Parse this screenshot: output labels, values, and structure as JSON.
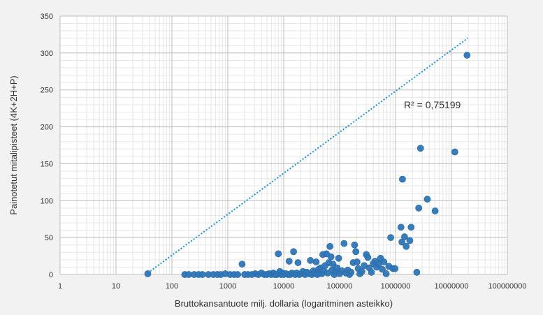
{
  "chart_data": {
    "type": "scatter",
    "title": "",
    "xlabel": "Bruttokansantuote milj. dollaria (logaritminen asteikko)",
    "ylabel": "Painotetut mitalipisteet (4K+2H+P)",
    "x_scale": "log",
    "xlim": [
      1,
      100000000
    ],
    "ylim": [
      0,
      350
    ],
    "x_ticks": [
      {
        "value": 1,
        "label": "1"
      },
      {
        "value": 10,
        "label": "10"
      },
      {
        "value": 100,
        "label": "100"
      },
      {
        "value": 1000,
        "label": "1000"
      },
      {
        "value": 10000,
        "label": "10000"
      },
      {
        "value": 100000,
        "label": "100000"
      },
      {
        "value": 1000000,
        "label": "1000000"
      },
      {
        "value": 10000000,
        "label": "10000000"
      },
      {
        "value": 100000000,
        "label": "100000000"
      }
    ],
    "y_ticks": [
      {
        "value": 0,
        "label": "0"
      },
      {
        "value": 50,
        "label": "50"
      },
      {
        "value": 100,
        "label": "100"
      },
      {
        "value": 150,
        "label": "150"
      },
      {
        "value": 200,
        "label": "200"
      },
      {
        "value": 250,
        "label": "250"
      },
      {
        "value": 300,
        "label": "300"
      },
      {
        "value": 350,
        "label": "350"
      }
    ],
    "grid": true,
    "annotation": "R² = 0,75199",
    "trendline": {
      "style": "dotted",
      "x": [
        37,
        19500000
      ],
      "y": [
        2,
        320
      ]
    },
    "point_color": "#2e75b6",
    "trendline_color": "#1f8fd1",
    "points": [
      {
        "x": 37,
        "y": 1
      },
      {
        "x": 170,
        "y": 0
      },
      {
        "x": 200,
        "y": 0
      },
      {
        "x": 250,
        "y": 0
      },
      {
        "x": 300,
        "y": 0
      },
      {
        "x": 350,
        "y": 0
      },
      {
        "x": 450,
        "y": 0
      },
      {
        "x": 550,
        "y": 0
      },
      {
        "x": 650,
        "y": 0
      },
      {
        "x": 750,
        "y": 0
      },
      {
        "x": 900,
        "y": 1
      },
      {
        "x": 1100,
        "y": 0
      },
      {
        "x": 1300,
        "y": 0
      },
      {
        "x": 1500,
        "y": 0
      },
      {
        "x": 1800,
        "y": 14
      },
      {
        "x": 2000,
        "y": 0
      },
      {
        "x": 2300,
        "y": 0
      },
      {
        "x": 2700,
        "y": 0
      },
      {
        "x": 3100,
        "y": 1
      },
      {
        "x": 3500,
        "y": 0
      },
      {
        "x": 4000,
        "y": 2
      },
      {
        "x": 4500,
        "y": 0
      },
      {
        "x": 5000,
        "y": 0
      },
      {
        "x": 5500,
        "y": 1
      },
      {
        "x": 6000,
        "y": 0
      },
      {
        "x": 6500,
        "y": 2
      },
      {
        "x": 7000,
        "y": 0
      },
      {
        "x": 7500,
        "y": 0
      },
      {
        "x": 8000,
        "y": 28
      },
      {
        "x": 8500,
        "y": 4
      },
      {
        "x": 9000,
        "y": 0
      },
      {
        "x": 9500,
        "y": 2
      },
      {
        "x": 10000,
        "y": 0
      },
      {
        "x": 11000,
        "y": 1
      },
      {
        "x": 12000,
        "y": 0
      },
      {
        "x": 12500,
        "y": 18
      },
      {
        "x": 13000,
        "y": 0
      },
      {
        "x": 14000,
        "y": 2
      },
      {
        "x": 15000,
        "y": 31
      },
      {
        "x": 16000,
        "y": 0
      },
      {
        "x": 17000,
        "y": 2
      },
      {
        "x": 18000,
        "y": 16
      },
      {
        "x": 19000,
        "y": 0
      },
      {
        "x": 20000,
        "y": 1
      },
      {
        "x": 22000,
        "y": 4
      },
      {
        "x": 24000,
        "y": 0
      },
      {
        "x": 26000,
        "y": 3
      },
      {
        "x": 28000,
        "y": 1
      },
      {
        "x": 30000,
        "y": 19
      },
      {
        "x": 32000,
        "y": 0
      },
      {
        "x": 34000,
        "y": 5
      },
      {
        "x": 36000,
        "y": 2
      },
      {
        "x": 38000,
        "y": 17
      },
      {
        "x": 40000,
        "y": 0
      },
      {
        "x": 42000,
        "y": 7
      },
      {
        "x": 44000,
        "y": 3
      },
      {
        "x": 46000,
        "y": 9
      },
      {
        "x": 48000,
        "y": 1
      },
      {
        "x": 50000,
        "y": 27
      },
      {
        "x": 52000,
        "y": 5
      },
      {
        "x": 55000,
        "y": 12
      },
      {
        "x": 58000,
        "y": 28
      },
      {
        "x": 61000,
        "y": 2
      },
      {
        "x": 64000,
        "y": 16
      },
      {
        "x": 67000,
        "y": 38
      },
      {
        "x": 70000,
        "y": 24
      },
      {
        "x": 73000,
        "y": 6
      },
      {
        "x": 76000,
        "y": 14
      },
      {
        "x": 80000,
        "y": 0
      },
      {
        "x": 84000,
        "y": 4
      },
      {
        "x": 90000,
        "y": 9
      },
      {
        "x": 96000,
        "y": 22
      },
      {
        "x": 100000,
        "y": 1
      },
      {
        "x": 110000,
        "y": 5
      },
      {
        "x": 120000,
        "y": 42
      },
      {
        "x": 130000,
        "y": 2
      },
      {
        "x": 140000,
        "y": 6
      },
      {
        "x": 150000,
        "y": 0
      },
      {
        "x": 160000,
        "y": 3
      },
      {
        "x": 175000,
        "y": 16
      },
      {
        "x": 185000,
        "y": 40
      },
      {
        "x": 195000,
        "y": 31
      },
      {
        "x": 205000,
        "y": 17
      },
      {
        "x": 215000,
        "y": 8
      },
      {
        "x": 230000,
        "y": 1
      },
      {
        "x": 250000,
        "y": 4
      },
      {
        "x": 275000,
        "y": 12
      },
      {
        "x": 300000,
        "y": 27
      },
      {
        "x": 320000,
        "y": 23
      },
      {
        "x": 340000,
        "y": 9
      },
      {
        "x": 370000,
        "y": 3
      },
      {
        "x": 400000,
        "y": 15
      },
      {
        "x": 430000,
        "y": 18
      },
      {
        "x": 460000,
        "y": 10
      },
      {
        "x": 500000,
        "y": 14
      },
      {
        "x": 540000,
        "y": 22
      },
      {
        "x": 580000,
        "y": 7
      },
      {
        "x": 620000,
        "y": 17
      },
      {
        "x": 680000,
        "y": 1
      },
      {
        "x": 760000,
        "y": 11
      },
      {
        "x": 820000,
        "y": 50
      },
      {
        "x": 900000,
        "y": 8
      },
      {
        "x": 980000,
        "y": 8
      },
      {
        "x": 1250000,
        "y": 64
      },
      {
        "x": 1300000,
        "y": 44
      },
      {
        "x": 1330000,
        "y": 129
      },
      {
        "x": 1450000,
        "y": 51
      },
      {
        "x": 1550000,
        "y": 38
      },
      {
        "x": 1800000,
        "y": 46
      },
      {
        "x": 1900000,
        "y": 64
      },
      {
        "x": 2400000,
        "y": 3
      },
      {
        "x": 2600000,
        "y": 90
      },
      {
        "x": 2800000,
        "y": 171
      },
      {
        "x": 3700000,
        "y": 102
      },
      {
        "x": 5100000,
        "y": 86
      },
      {
        "x": 11500000,
        "y": 166
      },
      {
        "x": 19000000,
        "y": 297
      }
    ]
  }
}
